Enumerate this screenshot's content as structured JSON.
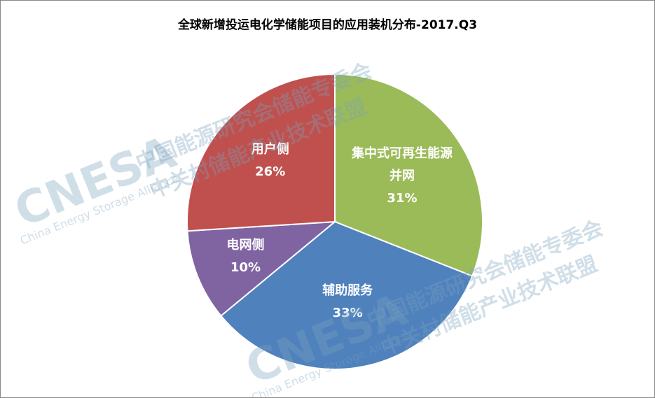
{
  "chart_data": {
    "type": "pie",
    "title": "全球新增投运电化学储能项目的应用装机分布-2017.Q3",
    "categories": [
      "集中式可再生能源并网",
      "辅助服务",
      "电网侧",
      "用户侧"
    ],
    "values": [
      31,
      33,
      10,
      26
    ],
    "value_labels": [
      "31%",
      "33%",
      "10%",
      "26%"
    ],
    "colors": [
      "#9BBB59",
      "#4F81BD",
      "#8064A2",
      "#C0504D"
    ]
  },
  "watermark": {
    "logo": "CNESA",
    "org_cn_1": "中国能源研究会储能专委会",
    "org_cn_2": "中关村储能产业技术联盟",
    "org_en": "China Energy Storage Alliance"
  }
}
